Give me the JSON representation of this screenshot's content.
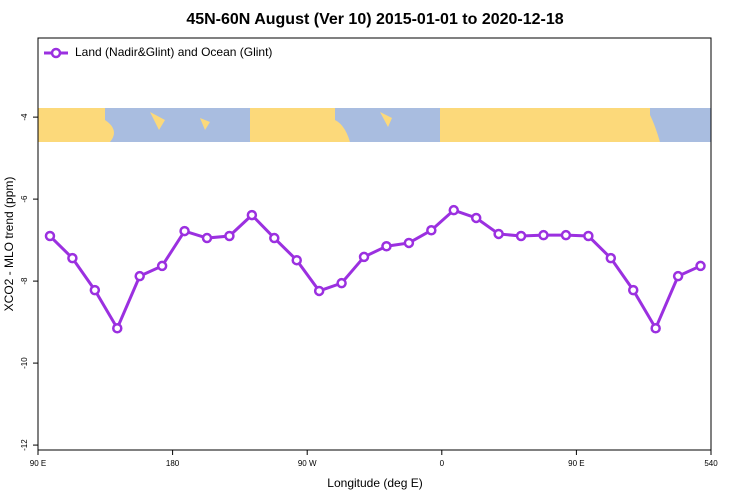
{
  "chart_data": {
    "type": "line",
    "title": "45N-60N August (Ver 10)   2015-01-01 to 2020-12-18",
    "x_label": "Longitude (deg E)",
    "y_label": "XCO2 - MLO trend (ppm)",
    "x": [
      98,
      113,
      128,
      143,
      158,
      173,
      188,
      203,
      218,
      233,
      248,
      263,
      278,
      293,
      308,
      323,
      338,
      353,
      368,
      383,
      398,
      413,
      428,
      443,
      458,
      473,
      488,
      503,
      518,
      533
    ],
    "series": [
      {
        "name": "Land (Nadir&Glint) and Ocean (Glint)",
        "color": "#9b30e0",
        "values": [
          -6.9,
          -7.44,
          -8.22,
          -9.15,
          -7.88,
          -7.63,
          -6.78,
          -6.95,
          -6.9,
          -6.39,
          -6.95,
          -7.49,
          -8.24,
          -8.05,
          -7.41,
          -7.15,
          -7.07,
          -6.76,
          -6.27,
          -6.46,
          -6.85,
          -6.9,
          -6.88,
          -6.88,
          -6.9,
          -7.44,
          -8.22,
          -9.15,
          -7.88,
          -7.63
        ]
      }
    ],
    "xlim": [
      90,
      540
    ],
    "xticks": [
      {
        "value": 90,
        "label": "90 E"
      },
      180,
      {
        "value": 270,
        "label": "90 W"
      },
      {
        "value": 360,
        "label": "0"
      },
      {
        "value": 450,
        "label": "90 E"
      },
      540
    ],
    "ylim": [
      -12.12,
      -2.07
    ],
    "yticks": [
      -4,
      -6,
      -8,
      -10,
      -12
    ],
    "legend": "top-left"
  }
}
